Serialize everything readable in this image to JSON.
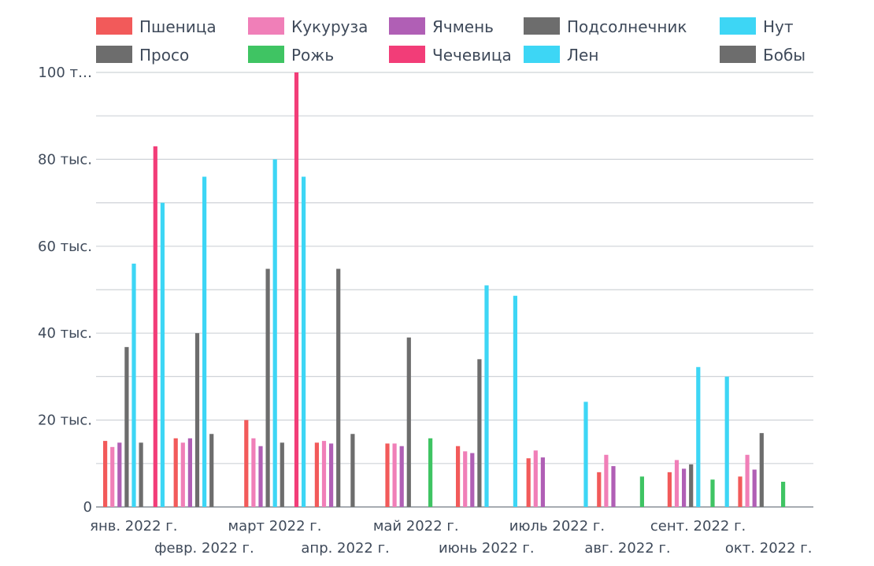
{
  "chart_data": {
    "type": "bar",
    "title": "",
    "xlabel": "",
    "ylabel": "",
    "ylim": [
      0,
      100000
    ],
    "grid": true,
    "legend_position": "top",
    "y_ticks": [
      {
        "value": 0,
        "label": "0"
      },
      {
        "value": 20000,
        "label": "20 тыс."
      },
      {
        "value": 40000,
        "label": "40 тыс."
      },
      {
        "value": 60000,
        "label": "60 тыс."
      },
      {
        "value": 80000,
        "label": "80 тыс."
      },
      {
        "value": 100000,
        "label": "100 т…"
      }
    ],
    "categories": [
      "янв. 2022 г.",
      "февр. 2022 г.",
      "март 2022 г.",
      "апр. 2022 г.",
      "май 2022 г.",
      "июнь 2022 г.",
      "июль 2022 г.",
      "авг. 2022 г.",
      "сент. 2022 г.",
      "окт. 2022 г."
    ],
    "series": [
      {
        "name": "Пшеница",
        "color": "#f25a5a",
        "values": [
          15200,
          15800,
          20000,
          14800,
          14600,
          14000,
          11200,
          8000,
          8000,
          7000
        ]
      },
      {
        "name": "Кукуруза",
        "color": "#f07fb8",
        "values": [
          13800,
          14800,
          15800,
          15200,
          14600,
          12800,
          13000,
          12000,
          10800,
          12000
        ]
      },
      {
        "name": "Ячмень",
        "color": "#b05fb5",
        "values": [
          14800,
          15800,
          14000,
          14600,
          14000,
          12400,
          11400,
          9400,
          8800,
          8600
        ]
      },
      {
        "name": "Подсолнечник",
        "color": "#6d6d6d",
        "values": [
          36800,
          40000,
          54800,
          54800,
          39000,
          34000,
          null,
          null,
          9800,
          17000
        ]
      },
      {
        "name": "Нут",
        "color": "#3dd6f5",
        "values": [
          56000,
          76000,
          80000,
          null,
          null,
          51000,
          null,
          null,
          32200,
          null
        ]
      },
      {
        "name": "Просо",
        "color": "#6d6d6d",
        "values": [
          14800,
          16800,
          14800,
          16800,
          null,
          null,
          null,
          null,
          null,
          null
        ]
      },
      {
        "name": "Рожь",
        "color": "#3fc463",
        "values": [
          null,
          null,
          null,
          null,
          15800,
          null,
          null,
          7000,
          6300,
          5800
        ]
      },
      {
        "name": "Чечевица",
        "color": "#f23d78",
        "values": [
          83000,
          null,
          100000,
          null,
          null,
          null,
          null,
          null,
          null,
          null
        ]
      },
      {
        "name": "Лен",
        "color": "#3dd6f5",
        "values": [
          70000,
          null,
          76000,
          null,
          null,
          48600,
          24200,
          null,
          30000,
          null
        ]
      },
      {
        "name": "Бобы",
        "color": "#6d6d6d",
        "values": [
          null,
          null,
          null,
          null,
          null,
          null,
          null,
          null,
          null,
          null
        ]
      }
    ]
  }
}
